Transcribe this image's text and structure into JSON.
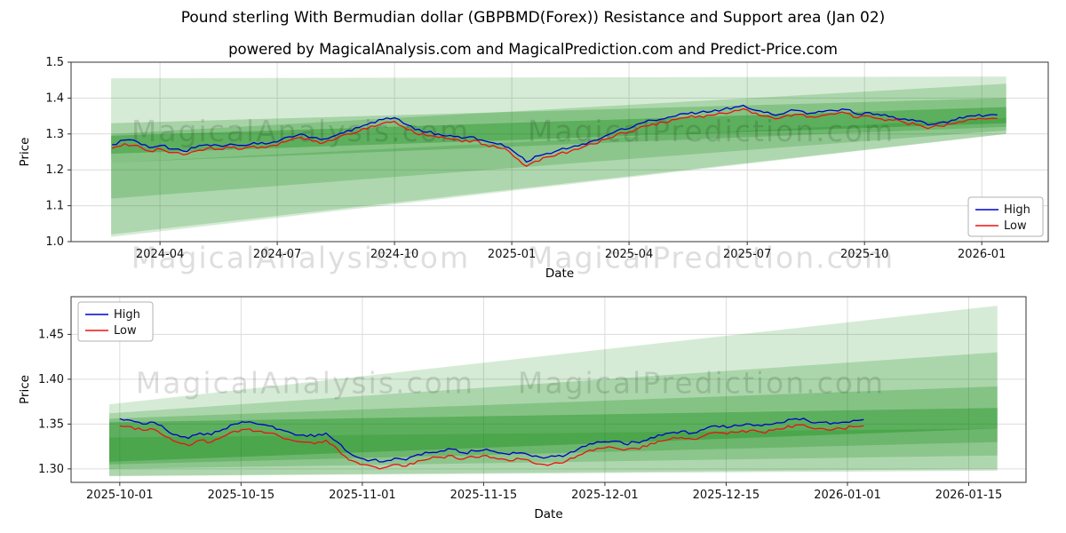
{
  "figure": {
    "title": "Pound sterling With Bermudian dollar (GBPBMD(Forex)) Resistance and Support area (Jan 02)",
    "subtitle": "powered by MagicalAnalysis.com and MagicalPrediction.com and Predict-Price.com"
  },
  "colors": {
    "high_line": "#0000cc",
    "low_line": "#ee1111",
    "band_green": "#008000",
    "grid": "#dcdcdc",
    "spine": "#333333",
    "watermark": "rgba(0,0,0,0.13)"
  },
  "watermark_texts": [
    "MagicalAnalysis.com",
    "MagicalPrediction.com"
  ],
  "chart_data": [
    {
      "type": "line",
      "xlabel": "Date",
      "ylabel": "Price",
      "ylim": [
        1.0,
        1.5
      ],
      "grid": true,
      "yticks": [
        {
          "v": 1.0,
          "label": "1.0"
        },
        {
          "v": 1.1,
          "label": "1.1"
        },
        {
          "v": 1.2,
          "label": "1.2"
        },
        {
          "v": 1.3,
          "label": "1.3"
        },
        {
          "v": 1.4,
          "label": "1.4"
        },
        {
          "v": 1.5,
          "label": "1.5"
        }
      ],
      "xticks": [
        {
          "f": 0.091,
          "label": "2024-04"
        },
        {
          "f": 0.211,
          "label": "2024-07"
        },
        {
          "f": 0.331,
          "label": "2024-10"
        },
        {
          "f": 0.451,
          "label": "2025-01"
        },
        {
          "f": 0.571,
          "label": "2025-04"
        },
        {
          "f": 0.692,
          "label": "2025-07"
        },
        {
          "f": 0.812,
          "label": "2025-10"
        },
        {
          "f": 0.932,
          "label": "2026-01"
        }
      ],
      "legend": {
        "position": "lower-right",
        "entries": [
          {
            "label": "High",
            "color": "#0000cc"
          },
          {
            "label": "Low",
            "color": "#ee1111"
          }
        ]
      },
      "bands": [
        {
          "x0": 0.041,
          "x1": 0.957,
          "y0": [
            1.013,
            1.455
          ],
          "y1": [
            1.3,
            1.46
          ],
          "opacity": 0.16
        },
        {
          "x0": 0.041,
          "x1": 0.957,
          "y0": [
            1.12,
            1.3
          ],
          "y1": [
            1.31,
            1.44
          ],
          "opacity": 0.2
        },
        {
          "x0": 0.041,
          "x1": 0.957,
          "y0": [
            1.02,
            1.22
          ],
          "y1": [
            1.3,
            1.345
          ],
          "opacity": 0.18
        },
        {
          "x0": 0.041,
          "x1": 0.957,
          "y0": [
            1.22,
            1.33
          ],
          "y1": [
            1.32,
            1.4
          ],
          "opacity": 0.22
        },
        {
          "x0": 0.041,
          "x1": 0.957,
          "y0": [
            1.245,
            1.295
          ],
          "y1": [
            1.33,
            1.375
          ],
          "opacity": 0.3
        }
      ],
      "series": [
        {
          "name": "High",
          "color": "#0000cc",
          "f": [
            0.042,
            0.055,
            0.068,
            0.08,
            0.092,
            0.104,
            0.115,
            0.127,
            0.139,
            0.151,
            0.163,
            0.175,
            0.187,
            0.199,
            0.211,
            0.223,
            0.235,
            0.247,
            0.259,
            0.271,
            0.283,
            0.295,
            0.307,
            0.319,
            0.331,
            0.34,
            0.352,
            0.364,
            0.376,
            0.388,
            0.4,
            0.412,
            0.424,
            0.436,
            0.448,
            0.458,
            0.466,
            0.475,
            0.487,
            0.499,
            0.511,
            0.523,
            0.535,
            0.547,
            0.559,
            0.571,
            0.583,
            0.595,
            0.607,
            0.619,
            0.631,
            0.643,
            0.655,
            0.667,
            0.679,
            0.688,
            0.697,
            0.709,
            0.721,
            0.733,
            0.745,
            0.757,
            0.769,
            0.781,
            0.793,
            0.805,
            0.817,
            0.829,
            0.841,
            0.853,
            0.865,
            0.877,
            0.889,
            0.901,
            0.913,
            0.925,
            0.937,
            0.948
          ],
          "v": [
            1.27,
            1.283,
            1.278,
            1.262,
            1.268,
            1.258,
            1.252,
            1.262,
            1.27,
            1.268,
            1.272,
            1.268,
            1.276,
            1.272,
            1.278,
            1.292,
            1.3,
            1.29,
            1.286,
            1.296,
            1.31,
            1.318,
            1.332,
            1.34,
            1.345,
            1.33,
            1.312,
            1.305,
            1.3,
            1.296,
            1.288,
            1.292,
            1.28,
            1.272,
            1.262,
            1.24,
            1.222,
            1.238,
            1.246,
            1.255,
            1.262,
            1.272,
            1.282,
            1.295,
            1.31,
            1.315,
            1.33,
            1.338,
            1.342,
            1.35,
            1.356,
            1.36,
            1.362,
            1.368,
            1.375,
            1.38,
            1.368,
            1.36,
            1.352,
            1.362,
            1.365,
            1.358,
            1.362,
            1.365,
            1.368,
            1.355,
            1.36,
            1.352,
            1.348,
            1.342,
            1.336,
            1.325,
            1.332,
            1.338,
            1.344,
            1.35,
            1.352,
            1.353
          ]
        },
        {
          "name": "Low",
          "color": "#ee1111",
          "f": [
            0.042,
            0.055,
            0.068,
            0.08,
            0.092,
            0.104,
            0.115,
            0.127,
            0.139,
            0.151,
            0.163,
            0.175,
            0.187,
            0.199,
            0.211,
            0.223,
            0.235,
            0.247,
            0.259,
            0.271,
            0.283,
            0.295,
            0.307,
            0.319,
            0.331,
            0.34,
            0.352,
            0.364,
            0.376,
            0.388,
            0.4,
            0.412,
            0.424,
            0.436,
            0.448,
            0.458,
            0.466,
            0.475,
            0.487,
            0.499,
            0.511,
            0.523,
            0.535,
            0.547,
            0.559,
            0.571,
            0.583,
            0.595,
            0.607,
            0.619,
            0.631,
            0.643,
            0.655,
            0.667,
            0.679,
            0.688,
            0.697,
            0.709,
            0.721,
            0.733,
            0.745,
            0.757,
            0.769,
            0.781,
            0.793,
            0.805,
            0.817,
            0.829,
            0.841,
            0.853,
            0.865,
            0.877,
            0.889,
            0.901,
            0.913,
            0.925,
            0.937,
            0.948
          ],
          "v": [
            1.26,
            1.273,
            1.268,
            1.252,
            1.258,
            1.248,
            1.242,
            1.252,
            1.26,
            1.258,
            1.262,
            1.258,
            1.266,
            1.262,
            1.268,
            1.282,
            1.29,
            1.28,
            1.276,
            1.286,
            1.3,
            1.308,
            1.322,
            1.33,
            1.335,
            1.32,
            1.302,
            1.295,
            1.29,
            1.286,
            1.278,
            1.282,
            1.27,
            1.262,
            1.252,
            1.228,
            1.21,
            1.224,
            1.236,
            1.245,
            1.252,
            1.262,
            1.272,
            1.285,
            1.3,
            1.305,
            1.32,
            1.328,
            1.332,
            1.34,
            1.346,
            1.35,
            1.352,
            1.358,
            1.365,
            1.37,
            1.358,
            1.35,
            1.342,
            1.352,
            1.355,
            1.348,
            1.352,
            1.355,
            1.358,
            1.345,
            1.35,
            1.342,
            1.338,
            1.332,
            1.326,
            1.315,
            1.322,
            1.328,
            1.334,
            1.34,
            1.342,
            1.343
          ]
        }
      ]
    },
    {
      "type": "line",
      "xlabel": "Date",
      "ylabel": "Price",
      "ylim": [
        1.285,
        1.492
      ],
      "grid": true,
      "yticks": [
        {
          "v": 1.3,
          "label": "1.30"
        },
        {
          "v": 1.35,
          "label": "1.35"
        },
        {
          "v": 1.4,
          "label": "1.40"
        },
        {
          "v": 1.45,
          "label": "1.45"
        }
      ],
      "xticks": [
        {
          "f": 0.051,
          "label": "2025-10-01"
        },
        {
          "f": 0.178,
          "label": "2025-10-15"
        },
        {
          "f": 0.305,
          "label": "2025-11-01"
        },
        {
          "f": 0.432,
          "label": "2025-11-15"
        },
        {
          "f": 0.559,
          "label": "2025-12-01"
        },
        {
          "f": 0.686,
          "label": "2025-12-15"
        },
        {
          "f": 0.813,
          "label": "2026-01-01"
        },
        {
          "f": 0.94,
          "label": "2026-01-15"
        }
      ],
      "legend": {
        "position": "upper-left",
        "entries": [
          {
            "label": "High",
            "color": "#0000cc"
          },
          {
            "label": "Low",
            "color": "#ee1111"
          }
        ]
      },
      "bands": [
        {
          "x0": 0.04,
          "x1": 0.97,
          "y0": [
            1.292,
            1.372
          ],
          "y1": [
            1.3,
            1.482
          ],
          "opacity": 0.16
        },
        {
          "x0": 0.04,
          "x1": 0.97,
          "y0": [
            1.3,
            1.362
          ],
          "y1": [
            1.315,
            1.43
          ],
          "opacity": 0.2
        },
        {
          "x0": 0.04,
          "x1": 0.97,
          "y0": [
            1.292,
            1.335
          ],
          "y1": [
            1.298,
            1.345
          ],
          "opacity": 0.18
        },
        {
          "x0": 0.04,
          "x1": 0.97,
          "y0": [
            1.305,
            1.356
          ],
          "y1": [
            1.33,
            1.392
          ],
          "opacity": 0.22
        },
        {
          "x0": 0.04,
          "x1": 0.97,
          "y0": [
            1.308,
            1.352
          ],
          "y1": [
            1.345,
            1.368
          ],
          "opacity": 0.3
        }
      ],
      "series": [
        {
          "name": "High",
          "color": "#0000cc",
          "f": [
            0.051,
            0.063,
            0.075,
            0.087,
            0.099,
            0.111,
            0.123,
            0.135,
            0.147,
            0.159,
            0.171,
            0.183,
            0.195,
            0.207,
            0.219,
            0.231,
            0.243,
            0.255,
            0.267,
            0.279,
            0.291,
            0.303,
            0.315,
            0.327,
            0.339,
            0.351,
            0.363,
            0.375,
            0.387,
            0.399,
            0.411,
            0.423,
            0.435,
            0.447,
            0.459,
            0.471,
            0.483,
            0.495,
            0.507,
            0.519,
            0.531,
            0.543,
            0.555,
            0.567,
            0.579,
            0.591,
            0.603,
            0.615,
            0.627,
            0.639,
            0.651,
            0.663,
            0.675,
            0.687,
            0.699,
            0.711,
            0.723,
            0.735,
            0.747,
            0.759,
            0.771,
            0.783,
            0.795,
            0.807,
            0.819,
            0.83
          ],
          "v": [
            1.356,
            1.354,
            1.35,
            1.352,
            1.344,
            1.338,
            1.334,
            1.34,
            1.338,
            1.344,
            1.35,
            1.352,
            1.35,
            1.348,
            1.344,
            1.34,
            1.338,
            1.336,
            1.34,
            1.33,
            1.318,
            1.312,
            1.31,
            1.308,
            1.312,
            1.31,
            1.316,
            1.318,
            1.32,
            1.322,
            1.318,
            1.32,
            1.322,
            1.318,
            1.316,
            1.318,
            1.314,
            1.312,
            1.314,
            1.316,
            1.322,
            1.328,
            1.33,
            1.331,
            1.328,
            1.33,
            1.332,
            1.338,
            1.34,
            1.342,
            1.34,
            1.344,
            1.348,
            1.346,
            1.348,
            1.35,
            1.348,
            1.35,
            1.352,
            1.356,
            1.354,
            1.352,
            1.35,
            1.352,
            1.354,
            1.355
          ]
        },
        {
          "name": "Low",
          "color": "#ee1111",
          "f": [
            0.051,
            0.063,
            0.075,
            0.087,
            0.099,
            0.111,
            0.123,
            0.135,
            0.147,
            0.159,
            0.171,
            0.183,
            0.195,
            0.207,
            0.219,
            0.231,
            0.243,
            0.255,
            0.267,
            0.279,
            0.291,
            0.303,
            0.315,
            0.327,
            0.339,
            0.351,
            0.363,
            0.375,
            0.387,
            0.399,
            0.411,
            0.423,
            0.435,
            0.447,
            0.459,
            0.471,
            0.483,
            0.495,
            0.507,
            0.519,
            0.531,
            0.543,
            0.555,
            0.567,
            0.579,
            0.591,
            0.603,
            0.615,
            0.627,
            0.639,
            0.651,
            0.663,
            0.675,
            0.687,
            0.699,
            0.711,
            0.723,
            0.735,
            0.747,
            0.759,
            0.771,
            0.783,
            0.795,
            0.807,
            0.819,
            0.83
          ],
          "v": [
            1.348,
            1.347,
            1.343,
            1.344,
            1.336,
            1.33,
            1.326,
            1.332,
            1.33,
            1.336,
            1.342,
            1.344,
            1.342,
            1.34,
            1.336,
            1.332,
            1.33,
            1.328,
            1.332,
            1.322,
            1.31,
            1.305,
            1.303,
            1.301,
            1.305,
            1.303,
            1.309,
            1.311,
            1.313,
            1.315,
            1.311,
            1.313,
            1.315,
            1.311,
            1.309,
            1.311,
            1.307,
            1.305,
            1.307,
            1.309,
            1.315,
            1.321,
            1.323,
            1.324,
            1.321,
            1.323,
            1.325,
            1.331,
            1.333,
            1.335,
            1.333,
            1.337,
            1.341,
            1.339,
            1.341,
            1.343,
            1.341,
            1.343,
            1.345,
            1.349,
            1.347,
            1.345,
            1.343,
            1.345,
            1.347,
            1.348
          ]
        }
      ]
    }
  ]
}
